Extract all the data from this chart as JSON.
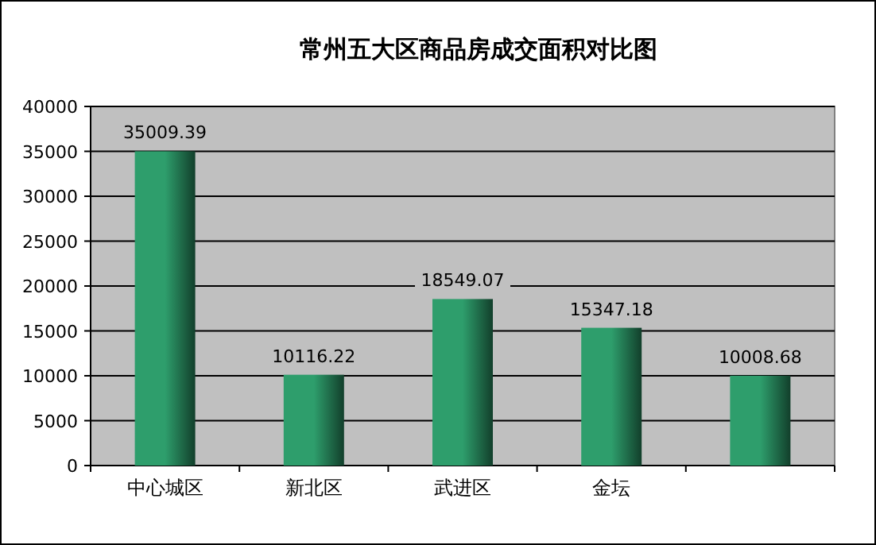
{
  "chart_data": {
    "type": "bar",
    "title": "常州五大区商品房成交面积对比图",
    "categories": [
      "中心城区",
      "新北区",
      "武进区",
      "金坛",
      null
    ],
    "values": [
      35009.39,
      10116.22,
      18549.07,
      15347.18,
      10008.68
    ],
    "color": "#2e9e6c",
    "ylim": [
      0,
      40000
    ],
    "yticks": [
      0,
      5000,
      10000,
      15000,
      20000,
      25000,
      30000,
      35000,
      40000
    ],
    "grid": "y",
    "data_labels": true
  }
}
